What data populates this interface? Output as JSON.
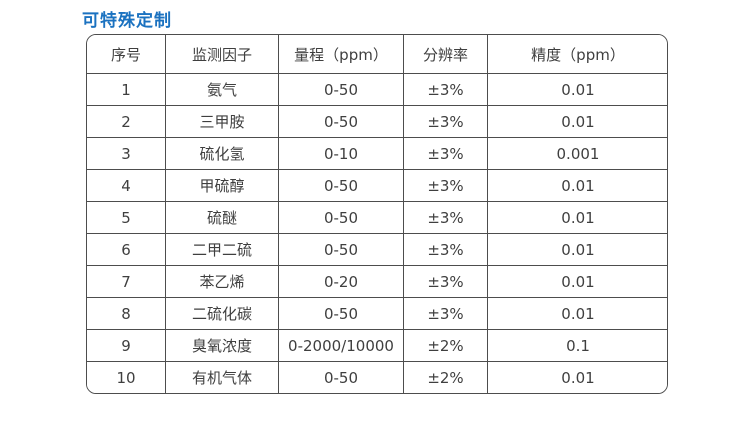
{
  "page": {
    "title": "可特殊定制",
    "background_color": "#ffffff",
    "title_color": "#1b72c0"
  },
  "table": {
    "border_color": "#4d4d4d",
    "text_color": "#3f3f3f",
    "columns": [
      {
        "key": "no",
        "label": "序号"
      },
      {
        "key": "factor",
        "label": "监测因子"
      },
      {
        "key": "range",
        "label": "量程（ppm）"
      },
      {
        "key": "resolution",
        "label": "分辨率"
      },
      {
        "key": "accuracy",
        "label": "精度（ppm）"
      }
    ],
    "rows": [
      [
        "1",
        "氨气",
        "0-50",
        "±3%",
        "0.01"
      ],
      [
        "2",
        "三甲胺",
        "0-50",
        "±3%",
        "0.01"
      ],
      [
        "3",
        "硫化氢",
        "0-10",
        "±3%",
        "0.001"
      ],
      [
        "4",
        "甲硫醇",
        "0-50",
        "±3%",
        "0.01"
      ],
      [
        "5",
        "硫醚",
        "0-50",
        "±3%",
        "0.01"
      ],
      [
        "6",
        "二甲二硫",
        "0-50",
        "±3%",
        "0.01"
      ],
      [
        "7",
        "苯乙烯",
        "0-20",
        "±3%",
        "0.01"
      ],
      [
        "8",
        "二硫化碳",
        "0-50",
        "±3%",
        "0.01"
      ],
      [
        "9",
        "臭氧浓度",
        "0-2000/10000",
        "±2%",
        "0.1"
      ],
      [
        "10",
        "有机气体",
        "0-50",
        "±2%",
        "0.01"
      ]
    ]
  }
}
